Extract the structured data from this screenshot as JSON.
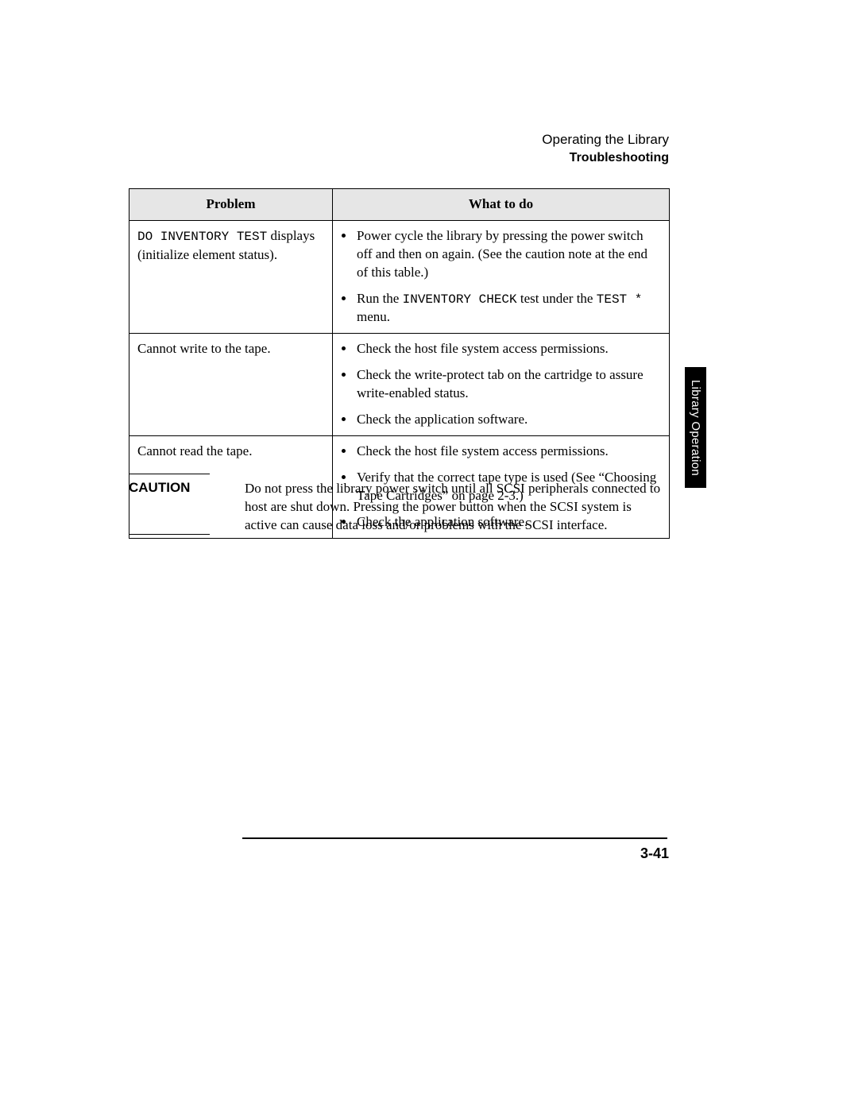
{
  "header": {
    "chapter": "Operating the Library",
    "section": "Troubleshooting"
  },
  "side_tab": "Library Operation",
  "table": {
    "headers": {
      "problem": "Problem",
      "action": "What to do"
    },
    "rows": [
      {
        "problem_mono": "DO INVENTORY TEST",
        "problem_rest": " displays (initialize element status).",
        "actions": [
          "Power cycle the library by pressing the power switch off and then on again.   (See the caution note at the end of this table.)",
          "Run the INVENTORY CHECK test under the TEST * menu."
        ],
        "action_mono_spans": [
          [],
          [
            "INVENTORY CHECK",
            "TEST *"
          ]
        ]
      },
      {
        "problem_mono": "",
        "problem_rest": "Cannot write to the tape.",
        "actions": [
          "Check the host file system access permissions.",
          "Check the write-protect tab on the cartridge to assure write-enabled status.",
          "Check the application software."
        ],
        "action_mono_spans": [
          [],
          [],
          []
        ]
      },
      {
        "problem_mono": "",
        "problem_rest": "Cannot read the tape.",
        "actions": [
          "Check the host file system access permissions.",
          "Verify that the correct tape type is used (See “Choosing Tape Cartridges” on page 2-3.)",
          "Check the application software."
        ],
        "action_mono_spans": [
          [],
          [],
          []
        ]
      }
    ]
  },
  "caution": {
    "label": "CAUTION",
    "text": "Do not press the library power switch until all SCSI peripherals connected to host are shut down. Pressing the power button when the SCSI system is active can cause data loss and/or problems with the SCSI interface."
  },
  "page_number": "3-41",
  "colors": {
    "header_bg": "#e6e6e6",
    "text": "#000000",
    "page_bg": "#ffffff",
    "tab_bg": "#000000",
    "tab_fg": "#ffffff"
  },
  "fonts": {
    "body": "Times New Roman",
    "sans": "Arial",
    "mono": "Courier New",
    "body_size_pt": 13,
    "header_size_pt": 13
  }
}
